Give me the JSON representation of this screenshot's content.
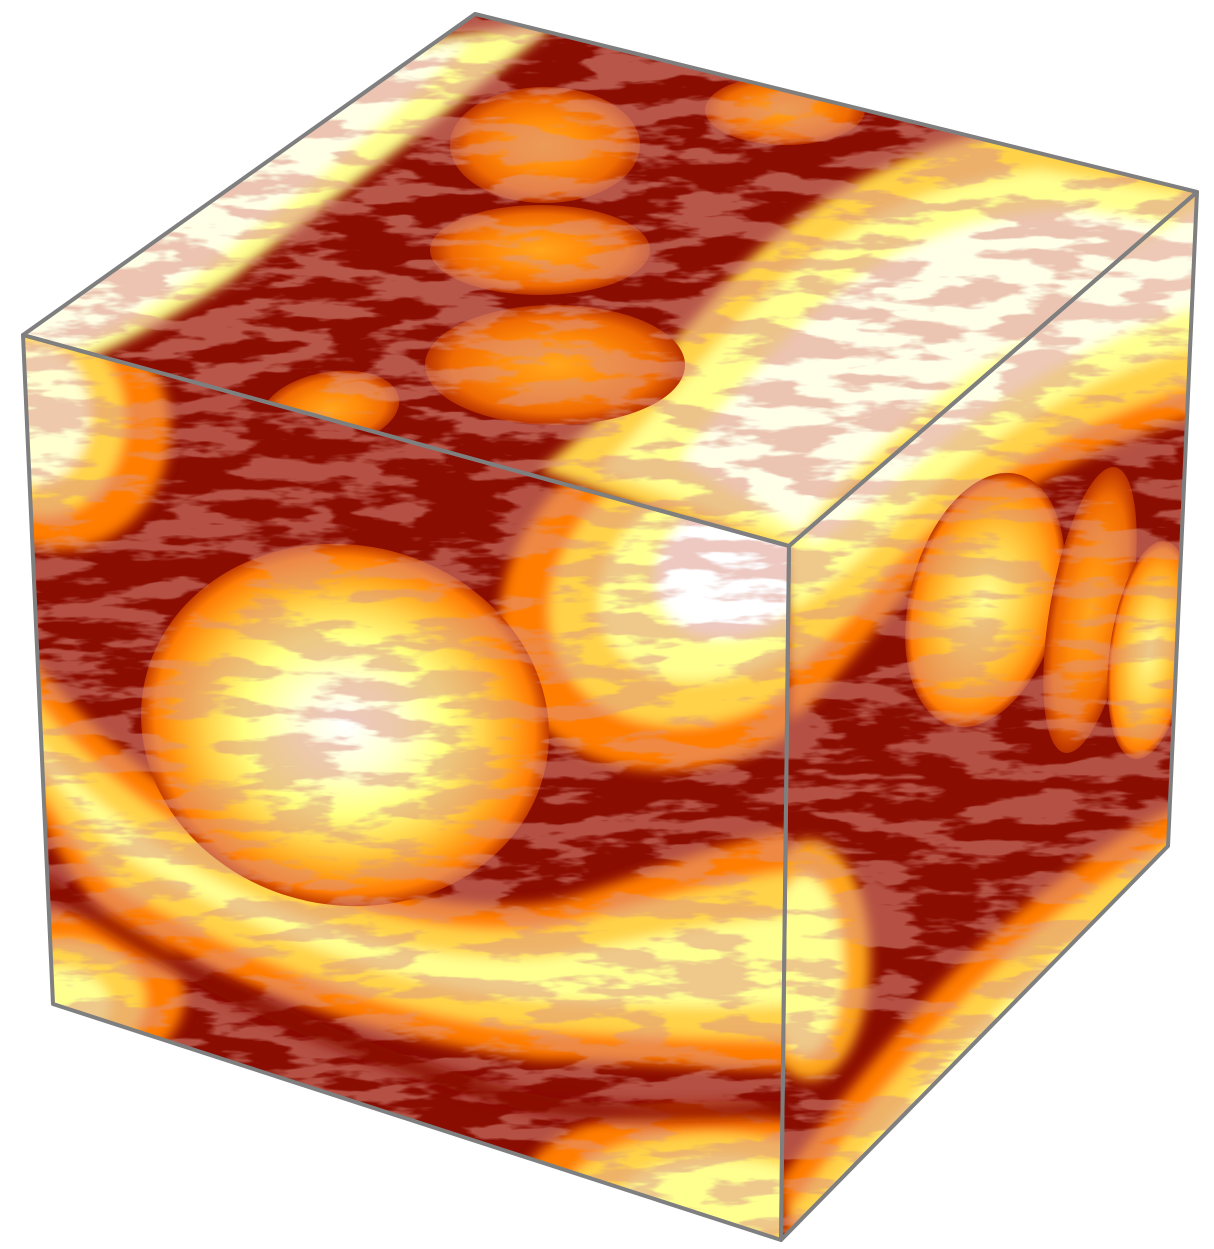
{
  "figure": {
    "kind": "3d-cube-field-visualization",
    "faces": [
      "top",
      "front",
      "right"
    ],
    "colormap": "hot",
    "colors": {
      "edge": "#7f7f7f",
      "dark": "#8a0d02",
      "darker": "#6e0a02",
      "filament": "#b24a3a",
      "orange": "#ff7d05",
      "amber": "#ffa51e",
      "yellow": "#ffff80",
      "pale": "#ffffe8",
      "white": "#ffffff"
    }
  }
}
